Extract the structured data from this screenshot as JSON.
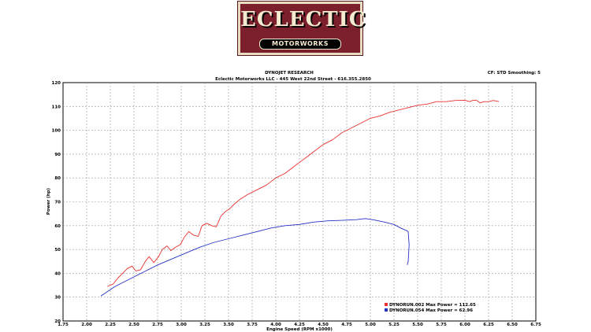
{
  "logo": {
    "title": "ECLECTIC",
    "subtitle": "MOTORWORKS"
  },
  "header": {
    "line1": "DYNOJET RESEARCH",
    "line2": "Eclectic Motorworks LLC - 445 West 22nd Street - 616.355.2850",
    "settings": "CF: STD  Smoothing: 5"
  },
  "chart_data": {
    "type": "line",
    "xlabel": "Engine Speed (RPM x1000)",
    "ylabel": "Power (hp)",
    "xlim": [
      1.75,
      6.75
    ],
    "ylim": [
      20,
      120
    ],
    "xticks": [
      "1.75",
      "2.00",
      "2.25",
      "2.50",
      "2.75",
      "3.00",
      "3.25",
      "3.50",
      "3.75",
      "4.00",
      "4.25",
      "4.50",
      "4.75",
      "5.00",
      "5.25",
      "5.50",
      "5.75",
      "6.00",
      "6.25",
      "6.50",
      "6.75"
    ],
    "yticks": [
      "20",
      "30",
      "40",
      "50",
      "60",
      "70",
      "80",
      "90",
      "100",
      "110",
      "120"
    ],
    "grid": true,
    "legend": "bottom-right",
    "series": [
      {
        "name": "DYNORUN.002 Max Power = 112.65",
        "color": "#e8302e",
        "x": [
          2.22,
          2.28,
          2.33,
          2.38,
          2.43,
          2.48,
          2.52,
          2.57,
          2.62,
          2.66,
          2.71,
          2.76,
          2.8,
          2.85,
          2.89,
          2.94,
          2.99,
          3.03,
          3.08,
          3.13,
          3.18,
          3.22,
          3.27,
          3.32,
          3.37,
          3.42,
          3.47,
          3.51,
          3.56,
          3.62,
          3.7,
          3.8,
          3.9,
          4.0,
          4.1,
          4.2,
          4.3,
          4.4,
          4.5,
          4.6,
          4.7,
          4.8,
          4.9,
          5.0,
          5.1,
          5.2,
          5.3,
          5.4,
          5.5,
          5.6,
          5.7,
          5.8,
          5.9,
          6.0,
          6.05,
          6.08,
          6.12,
          6.16,
          6.2,
          6.25,
          6.3,
          6.36
        ],
        "y": [
          34.5,
          35.5,
          38,
          40,
          42,
          43,
          41,
          41.5,
          45,
          47,
          44.5,
          47,
          50,
          51.5,
          49.5,
          51,
          52,
          55,
          57.5,
          56,
          55.5,
          60,
          61,
          60,
          59.5,
          64,
          66,
          67,
          69,
          71,
          73,
          75,
          77,
          80,
          82,
          85,
          88,
          91,
          94,
          96,
          99,
          101,
          103,
          105,
          106,
          107.5,
          108.5,
          109.5,
          110.5,
          111,
          112,
          112,
          112.5,
          112.6,
          112,
          112.5,
          112.65,
          111.5,
          112,
          112,
          112.5,
          112
        ]
      },
      {
        "name": "DYNORUN.054 Max Power = 62.96",
        "color": "#2632c4",
        "x": [
          2.15,
          2.3,
          2.45,
          2.6,
          2.75,
          2.9,
          3.05,
          3.2,
          3.35,
          3.5,
          3.65,
          3.8,
          3.95,
          4.1,
          4.25,
          4.4,
          4.55,
          4.7,
          4.85,
          4.95,
          5.05,
          5.15,
          5.25,
          5.32,
          5.38,
          5.4,
          5.41,
          5.4,
          5.39
        ],
        "y": [
          30.5,
          34.5,
          37.5,
          40.5,
          43.5,
          46,
          48.5,
          51,
          53,
          54.5,
          56,
          57.5,
          59,
          60,
          60.5,
          61.5,
          62,
          62.2,
          62.5,
          62.96,
          62.3,
          61.5,
          60.5,
          59,
          58,
          57.5,
          52,
          45,
          43.5
        ]
      }
    ]
  }
}
